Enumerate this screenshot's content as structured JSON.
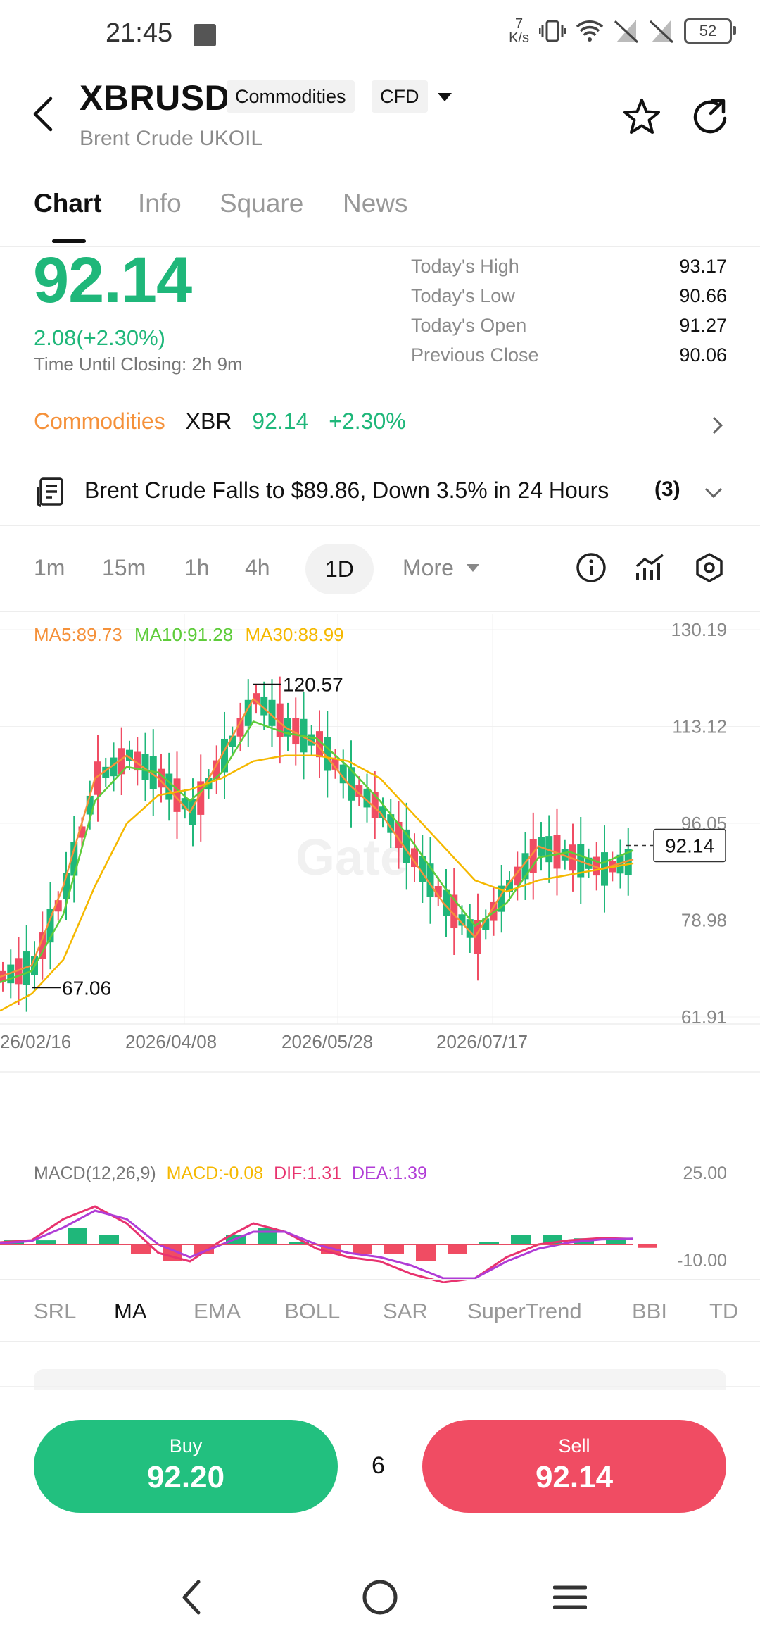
{
  "status_bar": {
    "time": "21:45",
    "net_speed_value": "7",
    "net_speed_unit": "K/s",
    "battery": "52"
  },
  "header": {
    "symbol": "XBRUSD",
    "tags": [
      "Commodities",
      "CFD"
    ],
    "name": "Brent Crude UKOIL"
  },
  "tabs": [
    {
      "label": "Chart",
      "active": true
    },
    {
      "label": "Info",
      "active": false
    },
    {
      "label": "Square",
      "active": false
    },
    {
      "label": "News",
      "active": false
    }
  ],
  "price": {
    "last": "92.14",
    "change": "2.08(+2.30%)",
    "closing": "Time Until Closing:  2h 9m"
  },
  "stats": [
    {
      "label": "Today's High",
      "value": "93.17"
    },
    {
      "label": "Today's Low",
      "value": "90.66"
    },
    {
      "label": "Today's Open",
      "value": "91.27"
    },
    {
      "label": "Previous Close",
      "value": "90.06"
    }
  ],
  "commodity_row": {
    "category": "Commodities",
    "ticker": "XBR",
    "price": "92.14",
    "change": "+2.30%"
  },
  "news": {
    "headline": "Brent Crude Falls to $89.86, Down 3.5% in 24 Hours",
    "count": "(3)"
  },
  "intervals": [
    {
      "label": "1m",
      "active": false
    },
    {
      "label": "15m",
      "active": false
    },
    {
      "label": "1h",
      "active": false
    },
    {
      "label": "4h",
      "active": false
    },
    {
      "label": "1D",
      "active": true
    },
    {
      "label": "More",
      "active": false
    }
  ],
  "ma_legend": {
    "ma5": "MA5:89.73",
    "ma10": "MA10:91.28",
    "ma30": "MA30:88.99"
  },
  "macd_legend": {
    "title": "MACD(12,26,9)",
    "macd": "MACD:-0.08",
    "dif": "DIF:1.31",
    "dea": "DEA:1.39",
    "axis_top": "25.00",
    "axis_bottom": "-10.00"
  },
  "indicators": [
    {
      "label": "SRL",
      "active": false
    },
    {
      "label": "MA",
      "active": true
    },
    {
      "label": "EMA",
      "active": false
    },
    {
      "label": "BOLL",
      "active": false
    },
    {
      "label": "SAR",
      "active": false
    },
    {
      "label": "SuperTrend",
      "active": false
    },
    {
      "label": "BBI",
      "active": false
    },
    {
      "label": "TD",
      "active": false
    }
  ],
  "trade": {
    "buy_label": "Buy",
    "buy_price": "92.20",
    "spread": "6",
    "sell_label": "Sell",
    "sell_price": "92.14"
  },
  "colors": {
    "up": "#1fb77a",
    "down": "#f04c63",
    "ma5": "#f5913a",
    "ma10": "#5ecc3a",
    "ma30": "#f5b800"
  },
  "chart_data": {
    "type": "line",
    "title": "",
    "y_ticks": [
      "130.19",
      "113.12",
      "96.05",
      "78.98",
      "61.91"
    ],
    "x_ticks": [
      "26/02/16",
      "2026/04/08",
      "2026/05/28",
      "2026/07/17"
    ],
    "ylim": [
      61.91,
      130.19
    ],
    "high_marker": "120.57",
    "low_marker": "67.06",
    "last_price_tag": "92.14",
    "x": [
      "2026-02-16",
      "2026-02-26",
      "2026-03-08",
      "2026-03-18",
      "2026-03-28",
      "2026-04-08",
      "2026-04-18",
      "2026-04-28",
      "2026-05-08",
      "2026-05-18",
      "2026-05-28",
      "2026-06-07",
      "2026-06-17",
      "2026-06-27",
      "2026-07-07",
      "2026-07-17",
      "2026-07-27",
      "2026-08-06",
      "2026-08-16",
      "2026-08-26",
      "2026-09-05"
    ],
    "series": [
      {
        "name": "MA5",
        "values": [
          69,
          71,
          85,
          104,
          108,
          104,
          98,
          108,
          118,
          113,
          110,
          103,
          98,
          90,
          82,
          76,
          85,
          92,
          90,
          88,
          89.7
        ]
      },
      {
        "name": "MA10",
        "values": [
          68,
          70,
          80,
          100,
          106,
          105,
          100,
          105,
          114,
          112,
          111,
          106,
          100,
          93,
          85,
          78,
          82,
          90,
          91,
          89,
          91.3
        ]
      },
      {
        "name": "MA30",
        "values": [
          63,
          66,
          72,
          85,
          96,
          101,
          102,
          104,
          107,
          108,
          108,
          107,
          104,
          98,
          92,
          86,
          84,
          86,
          87,
          88,
          89.0
        ]
      }
    ],
    "macd": {
      "dif": [
        0.5,
        1,
        6,
        9,
        5,
        -2,
        -4,
        1,
        5,
        3,
        -1,
        -3,
        -4,
        -7,
        -9,
        -8,
        -3,
        0,
        1,
        1.5,
        1.31
      ],
      "dea": [
        0.3,
        0.8,
        4,
        8,
        6,
        0,
        -3,
        0,
        3,
        3,
        0,
        -2,
        -3,
        -5,
        -8,
        -8,
        -4,
        -1,
        0.5,
        1.2,
        1.39
      ],
      "hist": [
        0.2,
        0.2,
        2,
        1,
        -1,
        -2,
        -1,
        1,
        2,
        0,
        -1,
        -1,
        -1,
        -2,
        -1,
        0,
        1,
        1,
        0.5,
        0.3,
        -0.08
      ]
    }
  }
}
